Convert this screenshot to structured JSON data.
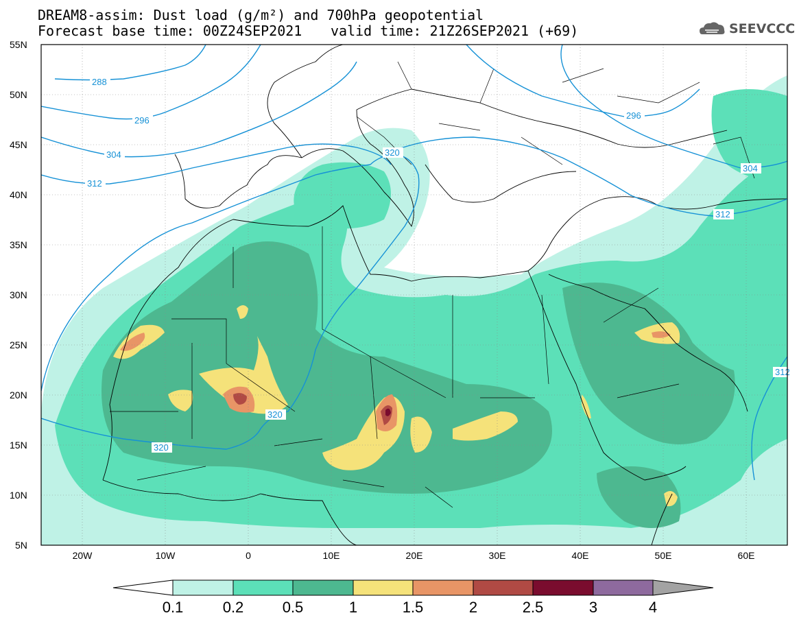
{
  "header": {
    "line1": "DREAM8-assim: Dust load (g/m²) and 700hPa geopotential",
    "line2_left": "Forecast base time: 00Z24SEP2021",
    "line2_right": "valid time: 21Z26SEP2021 (+69)"
  },
  "logo": {
    "text": "SEEVCCC",
    "icon": "cloud-icon"
  },
  "map": {
    "lat_labels": [
      "55N",
      "50N",
      "45N",
      "40N",
      "35N",
      "30N",
      "25N",
      "20N",
      "15N",
      "10N",
      "5N"
    ],
    "lon_labels": [
      "20W",
      "10W",
      "0",
      "10E",
      "20E",
      "30E",
      "40E",
      "50E",
      "60E"
    ],
    "extent": {
      "lon_min": -25,
      "lon_max": 65,
      "lat_min": 5,
      "lat_max": 55
    },
    "contour_labels": [
      "288",
      "296",
      "304",
      "312",
      "320",
      "320",
      "320",
      "296",
      "304",
      "312",
      "312"
    ],
    "contour_color": "#1591d6"
  },
  "colorbar": {
    "ticks": [
      "0.1",
      "0.2",
      "0.5",
      "1",
      "1.5",
      "2",
      "2.5",
      "3",
      "4"
    ],
    "colors": [
      "#bff2e6",
      "#5ce0b8",
      "#4db890",
      "#f5e27a",
      "#e89566",
      "#b04a44",
      "#7a0c2e",
      "#8e6a9e",
      "#a3a3a3"
    ]
  },
  "dust_colors": {
    "lvl1": "#bff2e6",
    "lvl2": "#5ce0b8",
    "lvl3": "#4db890",
    "lvl4": "#f5e27a",
    "lvl5": "#e89566",
    "lvl6": "#b04a44",
    "lvl7": "#7a0c2e"
  }
}
